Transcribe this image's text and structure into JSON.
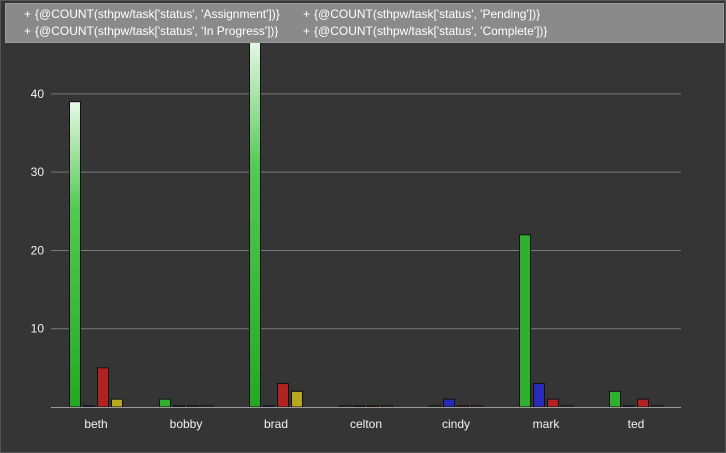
{
  "chart_data": {
    "type": "bar",
    "categories": [
      "beth",
      "bobby",
      "brad",
      "celton",
      "cindy",
      "mark",
      "ted"
    ],
    "series": [
      {
        "name": "{@COUNT(sthpw/task['status', 'Assignment'])}",
        "color": "#2fb02f",
        "values": [
          39,
          1,
          47,
          0,
          0,
          22,
          2
        ]
      },
      {
        "name": "{@COUNT(sthpw/task['status', 'Pending'])}",
        "color": "#2a2ab8",
        "values": [
          0,
          0,
          0,
          0,
          1,
          3,
          0
        ]
      },
      {
        "name": "{@COUNT(sthpw/task['status', 'In Progress'])}",
        "color": "#b22222",
        "values": [
          5,
          0,
          3,
          0,
          0,
          1,
          1
        ]
      },
      {
        "name": "{@COUNT(sthpw/task['status', 'Complete'])}",
        "color": "#b8a820",
        "values": [
          1,
          0,
          2,
          0,
          0,
          0,
          0
        ]
      }
    ],
    "yticks": [
      10,
      20,
      30,
      40
    ],
    "ylim": [
      0,
      46.5
    ],
    "grid": true,
    "legend_position": "top",
    "background": "#353535",
    "grid_color": "#7a7a7a"
  },
  "legend": {
    "plus": "+",
    "items": [
      "{@COUNT(sthpw/task['status', 'Assignment'])}",
      "{@COUNT(sthpw/task['status', 'Pending'])}",
      "{@COUNT(sthpw/task['status', 'In Progress'])}",
      "{@COUNT(sthpw/task['status', 'Complete'])}"
    ]
  }
}
